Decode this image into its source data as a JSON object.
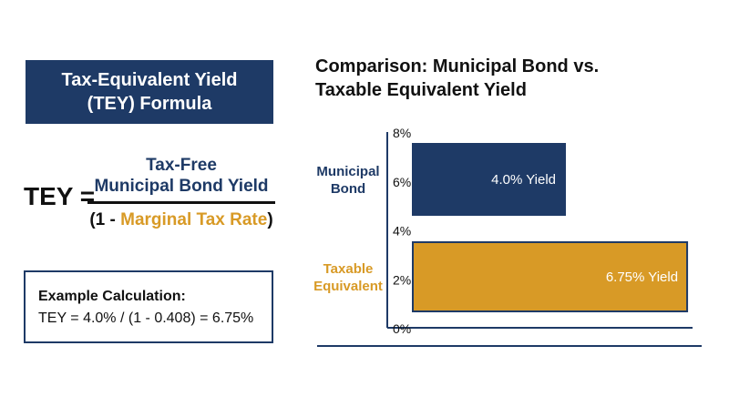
{
  "formula": {
    "title_line1": "Tax-Equivalent Yield",
    "title_line2": "(TEY) Formula",
    "tey_label": "TEY =",
    "numerator_line1": "Tax-Free",
    "numerator_line2": "Municipal Bond Yield",
    "denominator_open": "(1 - ",
    "denominator_accent": "Marginal Tax Rate",
    "denominator_close": ")"
  },
  "example": {
    "title": "Example Calculation:",
    "text": "TEY = 4.0% / (1 - 0.408) = 6.75%"
  },
  "chart_title_line1": "Comparison: Municipal Bond vs.",
  "chart_title_line2": "Taxable Equivalent Yield",
  "colors": {
    "navy": "#1e3a66",
    "gold": "#d89a26"
  },
  "chart_data": {
    "type": "bar",
    "orientation": "horizontal",
    "title": "Comparison: Municipal Bond vs. Taxable Equivalent Yield",
    "categories": [
      "Municipal Bond",
      "Taxable Equivalent"
    ],
    "values": [
      4.0,
      6.75
    ],
    "data_labels": [
      "4.0% Yield",
      "6.75% Yield"
    ],
    "axis_ticks": [
      "0%",
      "2%",
      "4%",
      "6%",
      "8%"
    ],
    "ylim": [
      0,
      8
    ],
    "grid": false,
    "legend": "none"
  }
}
